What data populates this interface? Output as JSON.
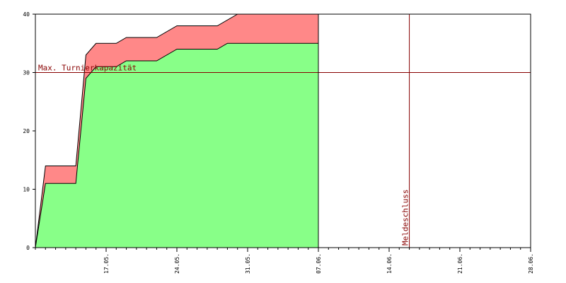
{
  "chart_data": {
    "type": "area",
    "stacked": true,
    "xlim": [
      "2023-05-10",
      "2023-06-28"
    ],
    "ylim": [
      0,
      40
    ],
    "y_ticks": [
      0,
      10,
      20,
      30,
      40
    ],
    "x_tick_labels": [
      "17.05.",
      "24.05.",
      "31.05.",
      "07.06.",
      "14.06.",
      "21.06.",
      "28.06."
    ],
    "x_tick_dates": [
      "2023-05-17",
      "2023-05-24",
      "2023-05-31",
      "2023-06-07",
      "2023-06-14",
      "2023-06-21",
      "2023-06-28"
    ],
    "grid": false,
    "series": [
      {
        "color": "#88ff88",
        "points": [
          [
            "2023-05-10",
            0
          ],
          [
            "2023-05-11",
            11
          ],
          [
            "2023-05-14",
            11
          ],
          [
            "2023-05-15",
            29
          ],
          [
            "2023-05-16",
            31
          ],
          [
            "2023-05-18",
            31
          ],
          [
            "2023-05-19",
            32
          ],
          [
            "2023-05-22",
            32
          ],
          [
            "2023-05-24",
            34
          ],
          [
            "2023-05-28",
            34
          ],
          [
            "2023-05-29",
            35
          ],
          [
            "2023-06-07",
            35
          ]
        ]
      },
      {
        "color": "#ff8888",
        "points": [
          [
            "2023-05-10",
            0
          ],
          [
            "2023-05-11",
            14
          ],
          [
            "2023-05-14",
            14
          ],
          [
            "2023-05-15",
            33
          ],
          [
            "2023-05-16",
            35
          ],
          [
            "2023-05-18",
            35
          ],
          [
            "2023-05-19",
            36
          ],
          [
            "2023-05-22",
            36
          ],
          [
            "2023-05-24",
            38
          ],
          [
            "2023-05-28",
            38
          ],
          [
            "2023-05-30",
            40
          ],
          [
            "2023-06-07",
            40
          ]
        ]
      }
    ],
    "reference_lines": [
      {
        "axis": "y",
        "value": 30,
        "label": "Max. Turnierkapazität",
        "color": "#880000"
      },
      {
        "axis": "x",
        "value": "2023-06-16",
        "label": "Meldeschluss",
        "color": "#880000"
      },
      {
        "axis": "x",
        "value": "2023-06-07",
        "label": "",
        "color": "#000000"
      }
    ]
  }
}
